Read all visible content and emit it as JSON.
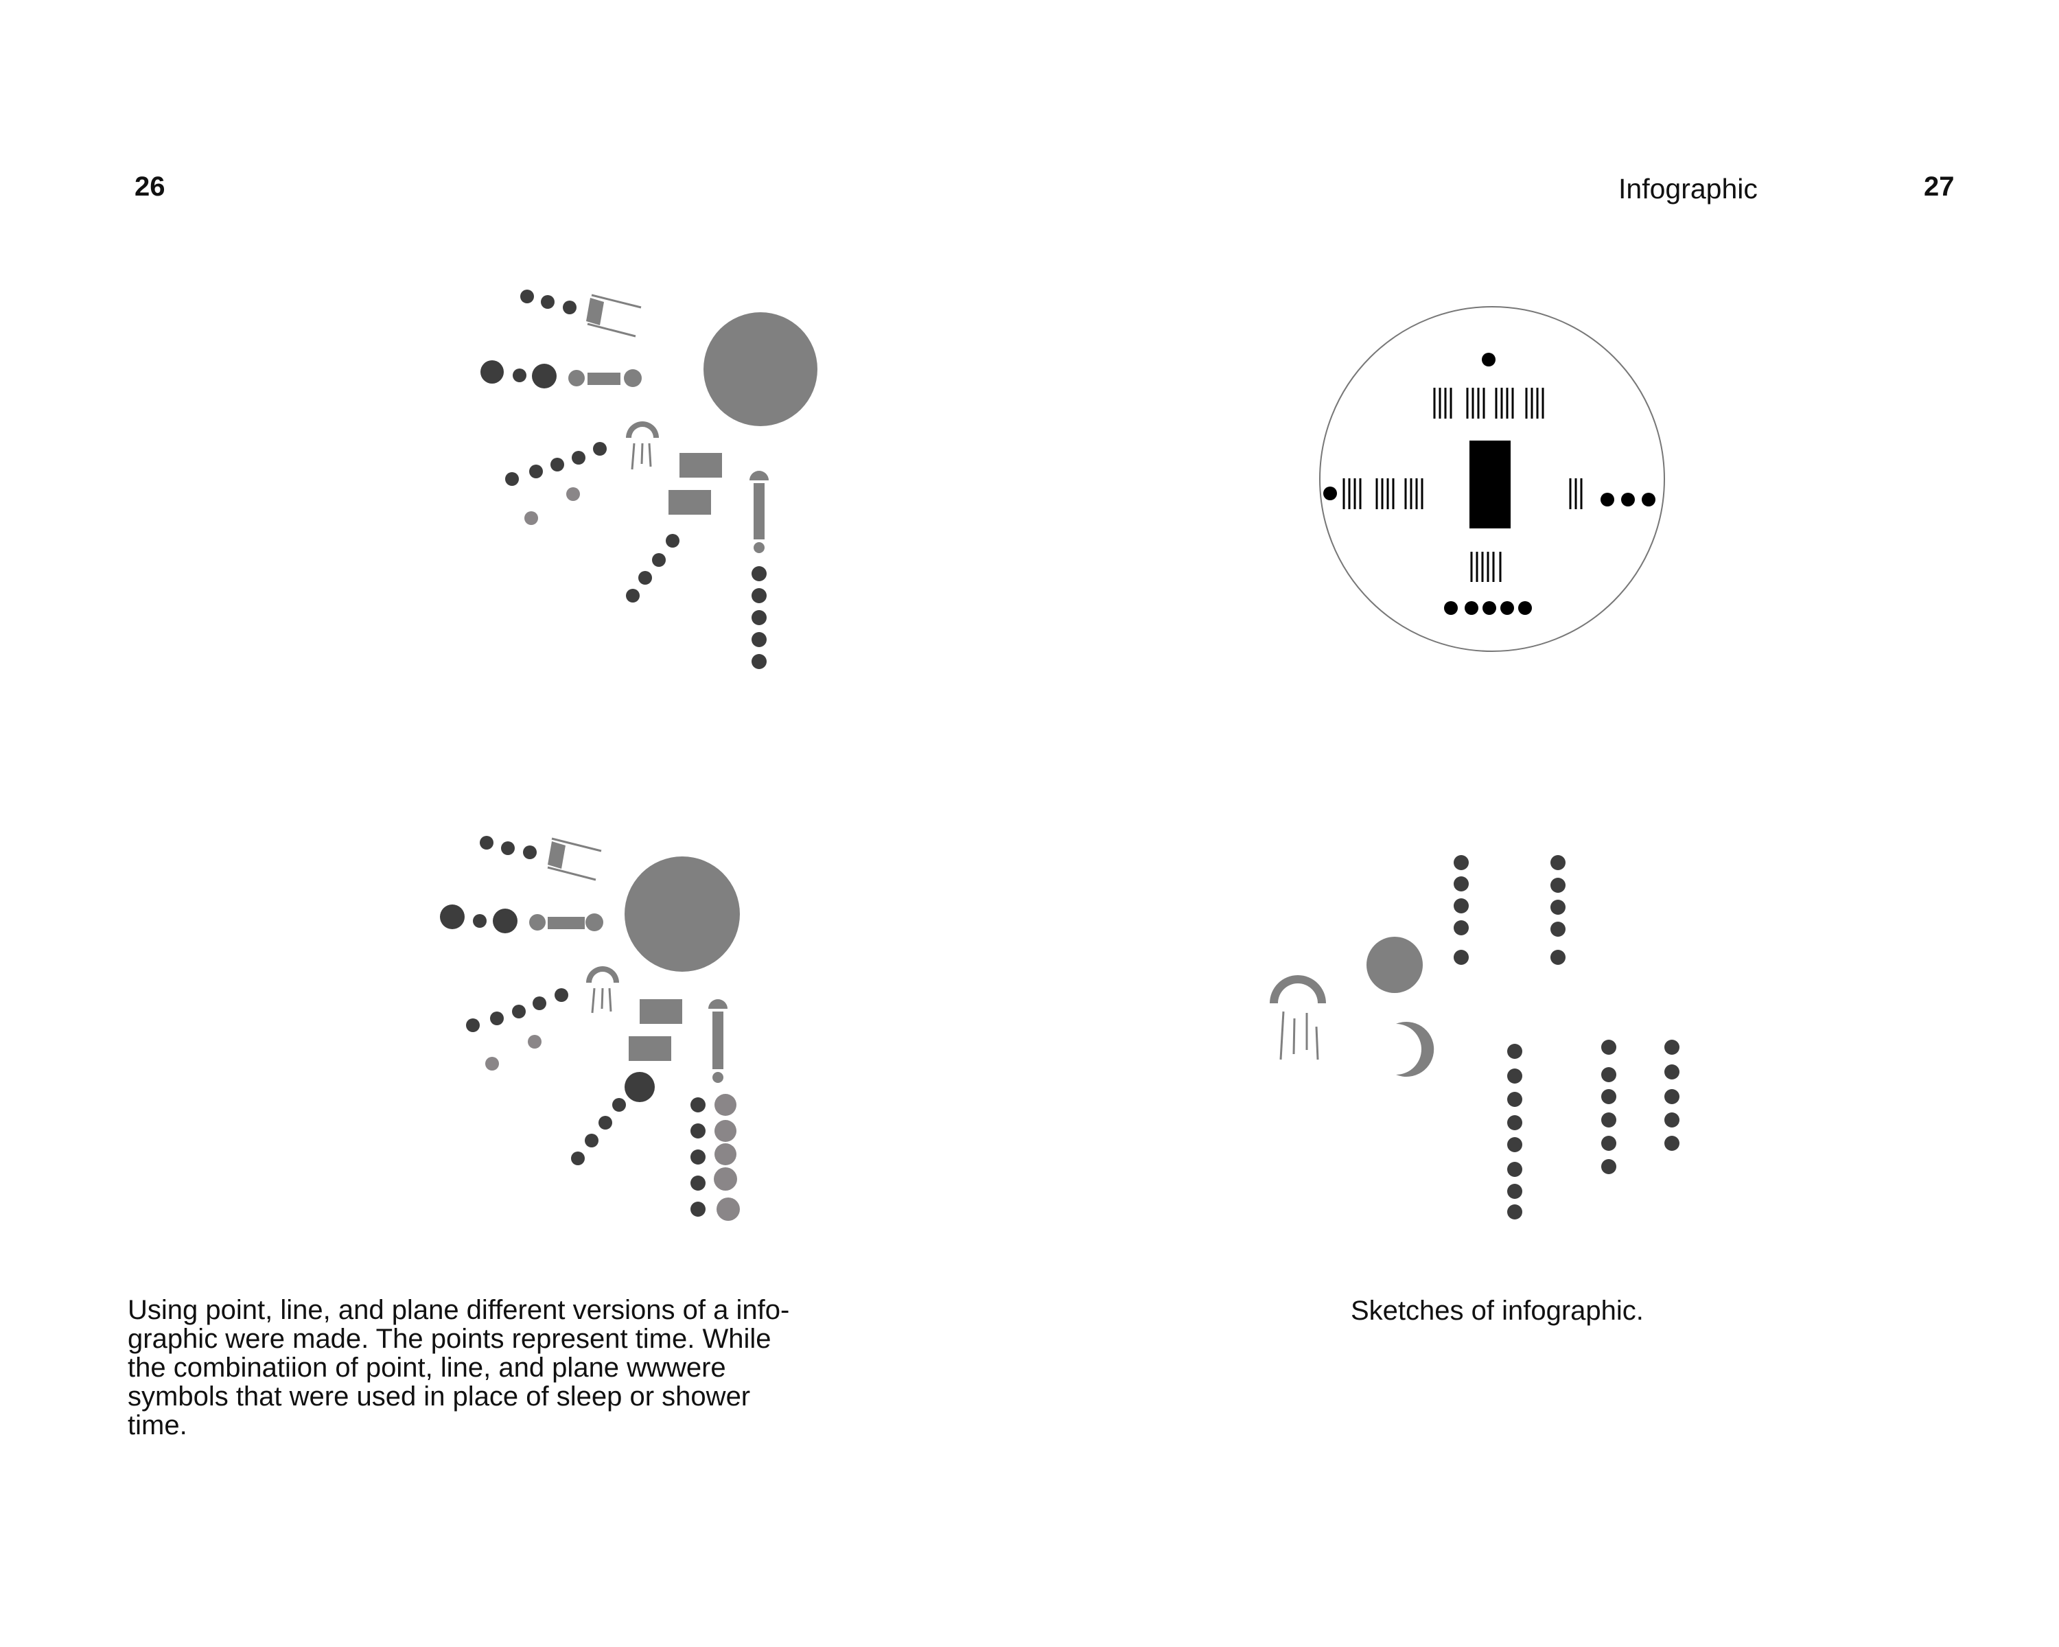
{
  "page": {
    "left_number": "26",
    "right_number": "27",
    "running_head": "Infographic"
  },
  "left_page": {
    "body_text": "Using point, line, and plane different versions of a info-\ngraphic were made. The points represent time. While\nthe combinatiion of point, line, and plane wwwere\nsymbols that were used in place of sleep or shower\ntime."
  },
  "right_page": {
    "caption": "Sketches of infographic."
  },
  "colors": {
    "dark_point": "#3d3d3d",
    "mid_gray": "#808080",
    "light_gray": "#8a8688",
    "black": "#000000",
    "circle_outline": "#777777"
  }
}
